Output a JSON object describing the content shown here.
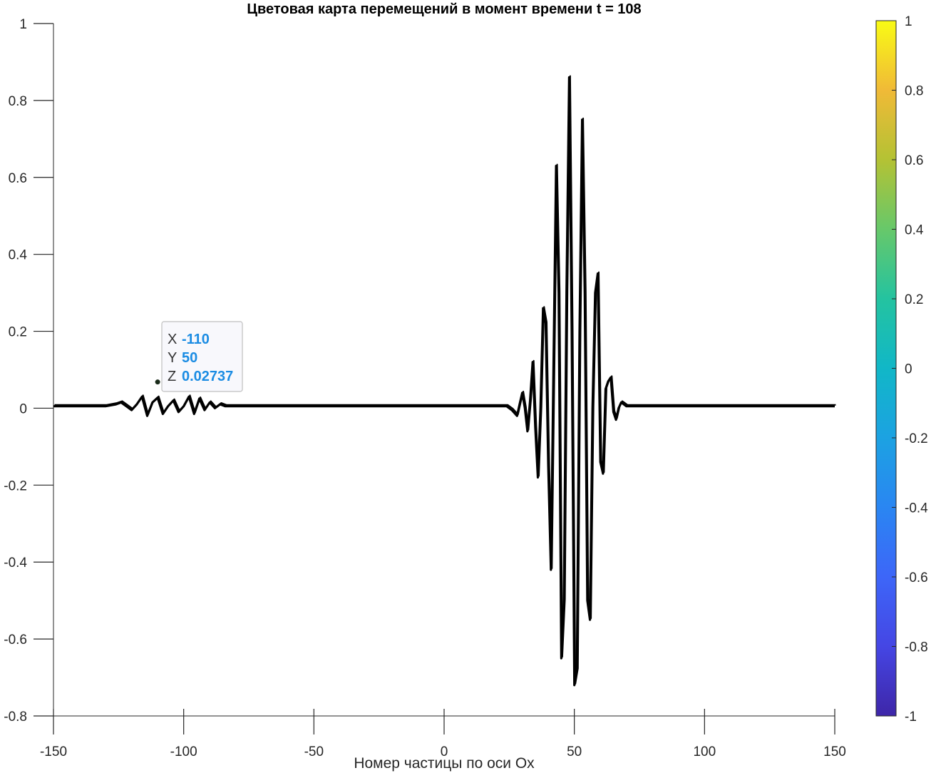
{
  "chart_data": {
    "type": "line",
    "title": "Цветовая карта перемещений в момент времени t = 108",
    "xlabel": "Номер частицы по оси Ox",
    "ylabel": "",
    "xlim": [
      -150,
      150
    ],
    "ylim": [
      -0.8,
      1
    ],
    "xticks": [
      -150,
      -100,
      -50,
      0,
      50,
      100,
      150
    ],
    "xtick_labels": [
      "-150",
      "-100",
      "-50",
      "0",
      "50",
      "100",
      "150"
    ],
    "yticks": [
      -0.8,
      -0.6,
      -0.4,
      -0.2,
      0,
      0.2,
      0.4,
      0.6,
      0.8,
      1
    ],
    "ytick_labels": [
      "-0.8",
      "-0.6",
      "-0.4",
      "-0.2",
      "0",
      "0.2",
      "0.4",
      "0.6",
      "0.8",
      "1"
    ],
    "grid": false,
    "line_color": "#000000",
    "series": [
      {
        "x": [
          -150,
          -130,
          -126,
          -124,
          -122,
          -120,
          -118,
          -116,
          -114,
          -112,
          -110,
          -108,
          -106,
          -104,
          -102,
          -100,
          -98,
          -96,
          -94,
          -92,
          -90,
          -88,
          -86,
          -84,
          -82,
          -80,
          -75,
          0,
          10,
          20,
          24,
          26,
          28,
          29,
          30,
          31,
          32,
          33,
          34,
          35,
          36,
          37,
          38,
          39,
          40,
          41,
          42,
          43,
          44,
          45,
          46,
          47,
          48,
          49,
          50,
          51,
          52,
          53,
          54,
          55,
          56,
          57,
          58,
          59,
          60,
          61,
          62,
          63,
          64,
          65,
          66,
          67,
          68,
          69,
          70,
          71,
          72,
          73,
          74,
          76,
          80,
          100,
          150
        ],
        "y": [
          0.005,
          0.005,
          0.01,
          0.015,
          0.005,
          -0.005,
          0.01,
          0.03,
          -0.02,
          0.015,
          0.0274,
          -0.015,
          0.005,
          0.02,
          -0.01,
          0.005,
          0.03,
          -0.015,
          0.025,
          -0.005,
          0.015,
          0.0,
          0.01,
          0.005,
          0.005,
          0.005,
          0.005,
          0.005,
          0.005,
          0.005,
          0.005,
          -0.005,
          -0.02,
          0.01,
          0.04,
          0.0,
          -0.06,
          0.02,
          0.12,
          -0.05,
          -0.18,
          0.0,
          0.26,
          0.22,
          -0.15,
          -0.42,
          0.1,
          0.63,
          0.3,
          -0.65,
          -0.5,
          0.3,
          0.86,
          0.2,
          -0.72,
          -0.68,
          0.2,
          0.75,
          0.3,
          -0.5,
          -0.55,
          0.0,
          0.3,
          0.35,
          -0.14,
          -0.17,
          0.05,
          0.07,
          0.08,
          -0.01,
          -0.03,
          0.0,
          0.015,
          0.01,
          0.005,
          0.005,
          0.005,
          0.005,
          0.005,
          0.005,
          0.005,
          0.005,
          0.005
        ]
      }
    ],
    "datatip": {
      "x_key": "X",
      "x_value": "-110",
      "y_key": "Y",
      "y_value": "50",
      "z_key": "Z",
      "z_value": "0.02737",
      "anchor_x": -110,
      "anchor_y": 0.0274,
      "value_color": "#1b8ce3"
    },
    "colorbar": {
      "colormap": "parula",
      "clim": [
        -1,
        1
      ],
      "ticks": [
        -1,
        -0.8,
        -0.6,
        -0.4,
        -0.2,
        0,
        0.2,
        0.4,
        0.6,
        0.8,
        1
      ],
      "tick_labels": [
        "-1",
        "-0.8",
        "-0.6",
        "-0.4",
        "-0.2",
        "0",
        "0.2",
        "0.4",
        "0.6",
        "0.8",
        "1"
      ],
      "colors": [
        "#3e26a8",
        "#4546e4",
        "#3d66f8",
        "#2a86f2",
        "#1ca2e2",
        "#11b7c7",
        "#24c3a0",
        "#67c86a",
        "#b4c234",
        "#f0ba37",
        "#f9fb15"
      ]
    }
  }
}
